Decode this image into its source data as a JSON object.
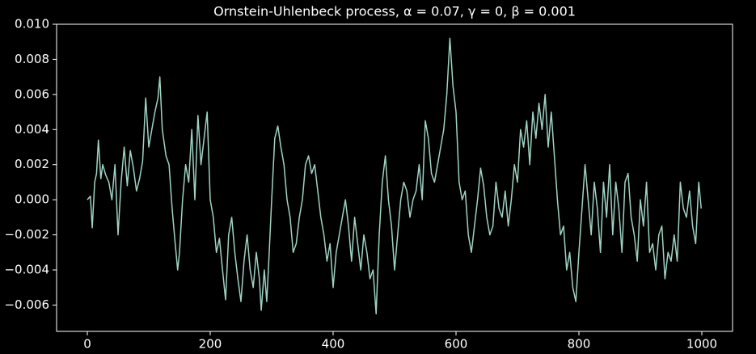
{
  "chart_data": {
    "type": "line",
    "title": "Ornstein-Uhlenbeck process, α = 0.07, γ = 0, β = 0.001",
    "color": "#9ed3c4",
    "xlim": [
      -50,
      1050
    ],
    "xticks": [
      0,
      200,
      400,
      600,
      800,
      1000
    ],
    "ylim": [
      -0.0075,
      0.01
    ],
    "yticks": [
      {
        "value": -0.006,
        "label": "−0.006"
      },
      {
        "value": -0.004,
        "label": "−0.004"
      },
      {
        "value": -0.002,
        "label": "−0.002"
      },
      {
        "value": 0.0,
        "label": "0.000"
      },
      {
        "value": 0.002,
        "label": "0.002"
      },
      {
        "value": 0.004,
        "label": "0.004"
      },
      {
        "value": 0.006,
        "label": "0.006"
      },
      {
        "value": 0.008,
        "label": "0.008"
      },
      {
        "value": 0.01,
        "label": "0.010"
      }
    ],
    "x": [
      0,
      5,
      8,
      12,
      15,
      18,
      22,
      25,
      30,
      35,
      40,
      45,
      50,
      55,
      60,
      65,
      70,
      75,
      80,
      85,
      90,
      95,
      100,
      105,
      110,
      115,
      118,
      122,
      128,
      133,
      138,
      143,
      147,
      150,
      155,
      160,
      165,
      170,
      175,
      180,
      185,
      190,
      195,
      200,
      205,
      210,
      215,
      220,
      225,
      230,
      235,
      240,
      245,
      250,
      255,
      260,
      265,
      270,
      275,
      280,
      283,
      288,
      292,
      296,
      300,
      305,
      310,
      315,
      320,
      325,
      330,
      335,
      340,
      345,
      350,
      355,
      360,
      365,
      370,
      375,
      380,
      385,
      390,
      395,
      400,
      405,
      410,
      415,
      420,
      425,
      430,
      435,
      440,
      445,
      450,
      455,
      460,
      465,
      470,
      475,
      480,
      485,
      490,
      495,
      500,
      505,
      510,
      515,
      520,
      525,
      530,
      535,
      540,
      545,
      550,
      555,
      560,
      565,
      570,
      575,
      580,
      585,
      590,
      595,
      600,
      605,
      610,
      615,
      620,
      625,
      630,
      635,
      640,
      645,
      650,
      655,
      660,
      665,
      670,
      675,
      680,
      685,
      690,
      695,
      700,
      705,
      710,
      715,
      720,
      725,
      730,
      735,
      740,
      745,
      750,
      755,
      760,
      765,
      770,
      775,
      780,
      785,
      790,
      795,
      800,
      805,
      810,
      815,
      820,
      825,
      830,
      835,
      840,
      845,
      850,
      855,
      860,
      865,
      870,
      875,
      880,
      885,
      890,
      895,
      900,
      905,
      910,
      915,
      920,
      925,
      930,
      935,
      940,
      945,
      950,
      955,
      960,
      965,
      970,
      975,
      980,
      985,
      990,
      995,
      999
    ],
    "values": [
      0.0,
      0.0002,
      -0.0016,
      0.001,
      0.0015,
      0.0034,
      0.0012,
      0.002,
      0.0014,
      0.001,
      0.0,
      0.002,
      -0.002,
      0.001,
      0.003,
      0.0008,
      0.0028,
      0.0018,
      0.0005,
      0.0012,
      0.0022,
      0.0058,
      0.003,
      0.004,
      0.005,
      0.0058,
      0.007,
      0.004,
      0.0025,
      0.002,
      -0.0005,
      -0.0025,
      -0.004,
      -0.003,
      0.0,
      0.002,
      0.001,
      0.004,
      0.0,
      0.0048,
      0.002,
      0.0035,
      0.005,
      0.0,
      -0.001,
      -0.003,
      -0.0022,
      -0.004,
      -0.0057,
      -0.002,
      -0.001,
      -0.003,
      -0.0045,
      -0.0058,
      -0.0035,
      -0.002,
      -0.004,
      -0.005,
      -0.003,
      -0.0045,
      -0.0063,
      -0.004,
      -0.0058,
      -0.003,
      0.0,
      0.0035,
      0.0042,
      0.003,
      0.002,
      0.0,
      -0.001,
      -0.003,
      -0.0025,
      -0.001,
      0.0,
      0.002,
      0.0025,
      0.0015,
      0.002,
      0.0005,
      -0.001,
      -0.002,
      -0.0035,
      -0.0025,
      -0.005,
      -0.003,
      -0.002,
      -0.001,
      0.0,
      -0.0015,
      -0.0035,
      -0.001,
      -0.0025,
      -0.004,
      -0.002,
      -0.003,
      -0.0045,
      -0.004,
      -0.0065,
      -0.002,
      0.001,
      0.0025,
      0.0,
      -0.0015,
      -0.004,
      -0.002,
      0.0,
      0.001,
      0.0005,
      -0.001,
      0.0,
      0.0005,
      0.002,
      0.0,
      0.0045,
      0.0035,
      0.0015,
      0.001,
      0.002,
      0.003,
      0.004,
      0.006,
      0.0092,
      0.0065,
      0.005,
      0.001,
      0.0,
      0.0005,
      -0.002,
      -0.003,
      -0.0015,
      0.0,
      0.0018,
      0.0008,
      -0.001,
      -0.002,
      -0.0015,
      0.001,
      -0.0005,
      -0.001,
      0.0005,
      -0.0015,
      0.0,
      0.002,
      0.001,
      0.004,
      0.003,
      0.0045,
      0.002,
      0.005,
      0.0035,
      0.0055,
      0.004,
      0.006,
      0.003,
      0.005,
      0.0025,
      0.0,
      -0.002,
      -0.0015,
      -0.004,
      -0.003,
      -0.005,
      -0.0058,
      -0.003,
      -0.0005,
      0.002,
      0.0,
      -0.002,
      0.001,
      -0.0005,
      -0.003,
      0.001,
      -0.001,
      0.002,
      -0.002,
      0.001,
      -0.0005,
      -0.003,
      0.001,
      0.0015,
      -0.001,
      -0.002,
      -0.0035,
      0.0,
      -0.0015,
      0.001,
      -0.003,
      -0.0025,
      -0.004,
      -0.002,
      -0.0015,
      -0.0045,
      -0.003,
      -0.0035,
      -0.002,
      -0.0035,
      0.001,
      -0.0005,
      -0.001,
      0.0005,
      -0.0015,
      -0.0025,
      0.001,
      -0.0005
    ]
  }
}
